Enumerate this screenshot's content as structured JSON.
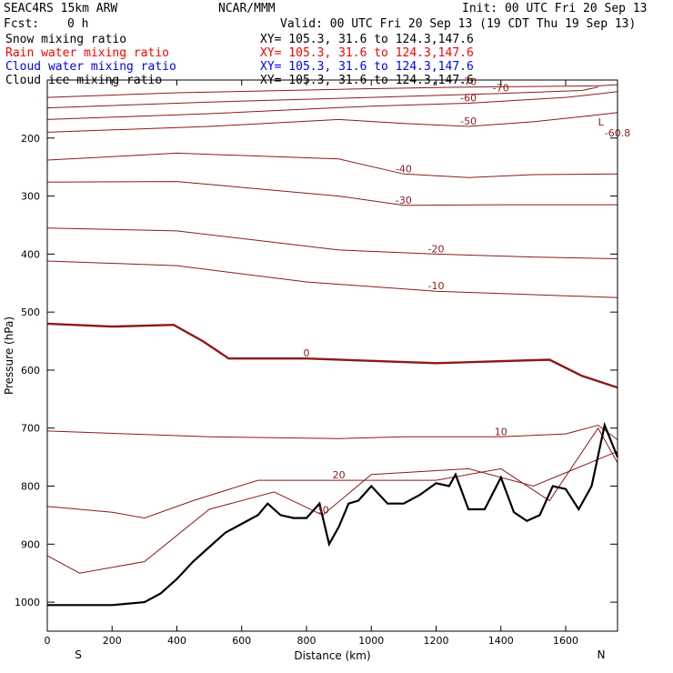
{
  "header": {
    "model": "SEAC4RS 15km ARW",
    "org": "NCAR/MMM",
    "init": "Init: 00 UTC Fri 20 Sep 13",
    "fcst_label": "Fcst:",
    "fcst_value": "0 h",
    "valid": "Valid: 00 UTC Fri 20 Sep 13 (19 CDT Thu 19 Sep 13)"
  },
  "fields": [
    {
      "name": "Snow mixing ratio",
      "xy": "XY= 105.3, 31.6 to 124.3,147.6",
      "color": "#000000"
    },
    {
      "name": "Rain water mixing ratio",
      "xy": "XY= 105.3, 31.6 to 124.3,147.6",
      "color": "#ff0000"
    },
    {
      "name": "Cloud water mixing ratio",
      "xy": "XY= 105.3, 31.6 to 124.3,147.6",
      "color": "#0000ff"
    },
    {
      "name": "Cloud ice mixing ratio",
      "xy": "XY= 105.3, 31.6 to 124.3,147.6",
      "color": "#000000"
    }
  ],
  "chart_data": {
    "type": "line",
    "xlabel": "Distance (km)",
    "ylabel": "Pressure (hPa)",
    "xlim": [
      0,
      1760
    ],
    "ylim": [
      100,
      1050
    ],
    "x_ticks": [
      "0",
      "200",
      "400",
      "600",
      "800",
      "1000",
      "1200",
      "1400",
      "1600"
    ],
    "y_ticks": [
      "200",
      "300",
      "400",
      "500",
      "600",
      "700",
      "800",
      "900",
      "1000"
    ],
    "endpoints": {
      "left": "S",
      "right": "N"
    },
    "contour_color": "#8b1a1a",
    "terrain_color": "#000000",
    "contours": [
      {
        "level": -70,
        "x": [
          0,
          400,
          900,
          1300,
          1700,
          1760
        ],
        "p": [
          130,
          122,
          116,
          112,
          110,
          108
        ]
      },
      {
        "level": -70,
        "x": [
          0,
          500,
          1000,
          1400,
          1650,
          1700
        ],
        "p": [
          148,
          138,
          130,
          123,
          118,
          112
        ]
      },
      {
        "level": -60,
        "x": [
          0,
          500,
          1000,
          1300,
          1600,
          1700,
          1760
        ],
        "p": [
          168,
          158,
          145,
          140,
          130,
          124,
          120
        ]
      },
      {
        "level": -50,
        "x": [
          0,
          500,
          900,
          1100,
          1300,
          1500,
          1700,
          1760
        ],
        "p": [
          190,
          180,
          168,
          175,
          180,
          172,
          160,
          156
        ]
      },
      {
        "level": -40,
        "x": [
          0,
          400,
          900,
          1100,
          1300,
          1500,
          1760
        ],
        "p": [
          238,
          226,
          236,
          262,
          268,
          263,
          262
        ]
      },
      {
        "level": -30,
        "x": [
          0,
          400,
          900,
          1100,
          1400,
          1760
        ],
        "p": [
          276,
          275,
          300,
          316,
          315,
          315
        ]
      },
      {
        "level": -20,
        "x": [
          0,
          400,
          900,
          1200,
          1500,
          1760
        ],
        "p": [
          355,
          360,
          393,
          400,
          405,
          408
        ]
      },
      {
        "level": -10,
        "x": [
          0,
          400,
          800,
          1200,
          1500,
          1760
        ],
        "p": [
          412,
          420,
          448,
          464,
          470,
          475
        ]
      },
      {
        "level": 0,
        "x": [
          0,
          200,
          390,
          480,
          560,
          800,
          1200,
          1550,
          1650,
          1760
        ],
        "p": [
          520,
          525,
          522,
          550,
          580,
          580,
          588,
          582,
          610,
          630
        ]
      },
      {
        "level": 10,
        "x": [
          0,
          500,
          900,
          1100,
          1400,
          1600,
          1700,
          1760
        ],
        "p": [
          705,
          715,
          718,
          715,
          715,
          710,
          695,
          720
        ]
      },
      {
        "level": 20,
        "x": [
          0,
          200,
          300,
          450,
          650,
          900,
          1200,
          1400,
          1550,
          1700,
          1760
        ],
        "p": [
          835,
          845,
          855,
          825,
          790,
          790,
          790,
          770,
          825,
          700,
          760
        ]
      },
      {
        "level": 30,
        "x": [
          0,
          100,
          300,
          500,
          700,
          850,
          1000,
          1300,
          1500,
          1760
        ],
        "p": [
          920,
          950,
          930,
          840,
          810,
          850,
          780,
          770,
          800,
          740
        ]
      }
    ],
    "terrain": {
      "x": [
        0,
        200,
        300,
        350,
        400,
        450,
        500,
        550,
        600,
        650,
        680,
        720,
        760,
        800,
        840,
        870,
        900,
        930,
        960,
        1000,
        1050,
        1100,
        1150,
        1200,
        1240,
        1260,
        1300,
        1350,
        1400,
        1440,
        1480,
        1520,
        1560,
        1600,
        1640,
        1680,
        1720,
        1760
      ],
      "p": [
        1005,
        1005,
        1000,
        985,
        960,
        930,
        905,
        880,
        865,
        850,
        830,
        850,
        855,
        855,
        830,
        900,
        870,
        830,
        825,
        800,
        830,
        830,
        815,
        795,
        800,
        780,
        840,
        840,
        785,
        845,
        860,
        850,
        800,
        805,
        840,
        800,
        695,
        750
      ]
    },
    "annotations": [
      {
        "text": "L",
        "x": 1700,
        "p": 178
      },
      {
        "text": "-60.8",
        "x": 1720,
        "p": 197
      }
    ],
    "grid": false
  }
}
